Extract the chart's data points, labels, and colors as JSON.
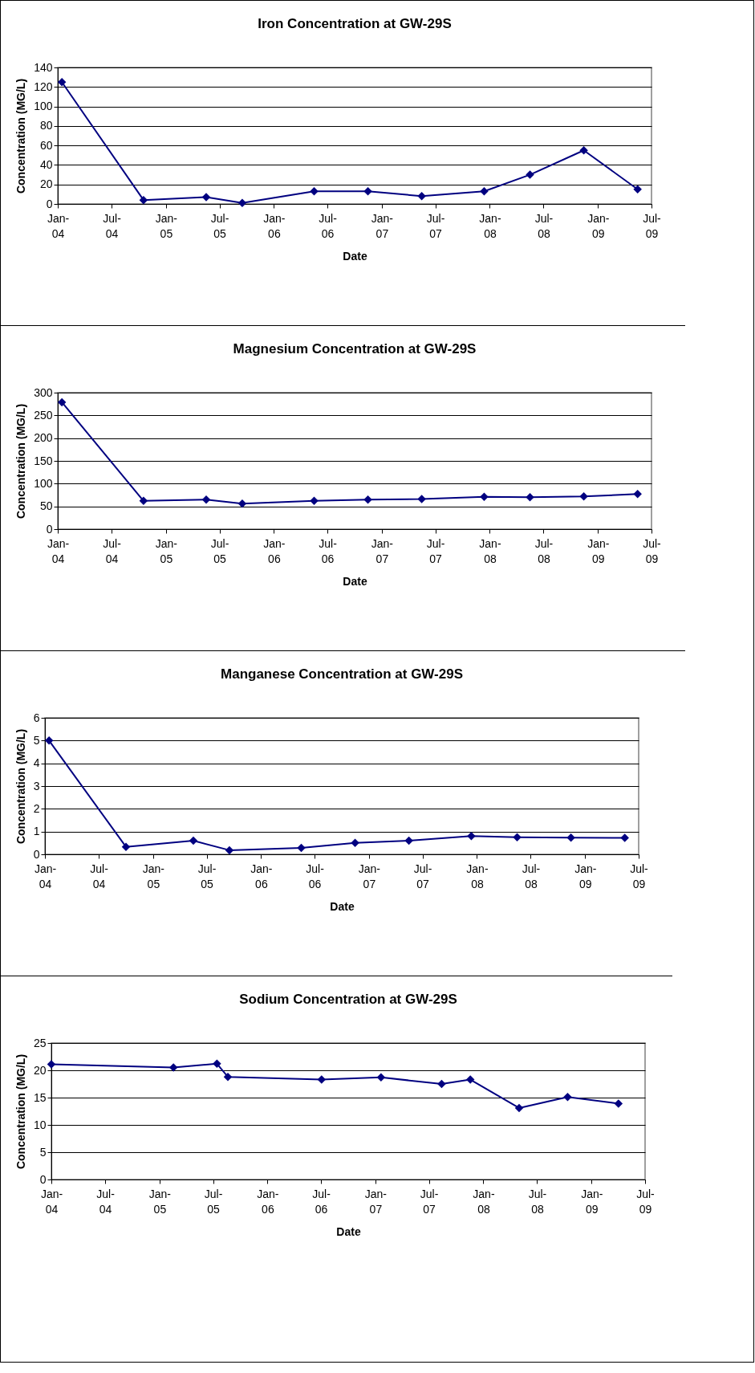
{
  "chart_data": [
    {
      "type": "line",
      "title": "Iron Concentration at GW-29S",
      "xlabel": "Date",
      "ylabel": "Concentration (MG/L)",
      "x": [
        "2004-01-15",
        "2004-10-17",
        "2005-05-17",
        "2005-09-16",
        "2006-05-17",
        "2006-11-15",
        "2007-05-16",
        "2007-12-13",
        "2008-05-16",
        "2008-11-14",
        "2009-05-15"
      ],
      "series": [
        {
          "color": "#000080",
          "values": [
            125,
            4,
            7,
            1,
            13,
            13,
            8,
            13,
            30,
            55,
            15
          ]
        }
      ],
      "xlim": [
        "2004-01-01",
        "2009-07-01"
      ],
      "xticks": [
        {
          "value": "2004-01-01",
          "label": "Jan-04"
        },
        {
          "value": "2004-07-01",
          "label": "Jul-04"
        },
        {
          "value": "2005-01-01",
          "label": "Jan-05"
        },
        {
          "value": "2005-07-01",
          "label": "Jul-05"
        },
        {
          "value": "2006-01-01",
          "label": "Jan-06"
        },
        {
          "value": "2006-07-01",
          "label": "Jul-06"
        },
        {
          "value": "2007-01-01",
          "label": "Jan-07"
        },
        {
          "value": "2007-07-01",
          "label": "Jul-07"
        },
        {
          "value": "2008-01-01",
          "label": "Jan-08"
        },
        {
          "value": "2008-07-01",
          "label": "Jul-08"
        },
        {
          "value": "2009-01-01",
          "label": "Jan-09"
        },
        {
          "value": "2009-07-01",
          "label": "Jul-09"
        }
      ],
      "ylim": [
        0,
        140
      ],
      "yticks": [
        0,
        20,
        40,
        60,
        80,
        100,
        120,
        140
      ],
      "grid": "y",
      "marker": "diamond",
      "line_style": "solid"
    },
    {
      "type": "line",
      "title": "Magnesium Concentration at GW-29S",
      "xlabel": "Date",
      "ylabel": "Concentration (MG/L)",
      "x": [
        "2004-01-15",
        "2004-10-17",
        "2005-05-17",
        "2005-09-16",
        "2006-05-17",
        "2006-11-15",
        "2007-05-16",
        "2007-12-13",
        "2008-05-16",
        "2008-11-14",
        "2009-05-15"
      ],
      "series": [
        {
          "color": "#000080",
          "values": [
            279,
            62,
            65,
            56,
            62,
            65,
            66,
            71,
            70,
            72,
            77
          ]
        }
      ],
      "xlim": [
        "2004-01-01",
        "2009-07-01"
      ],
      "xticks": [
        {
          "value": "2004-01-01",
          "label": "Jan-04"
        },
        {
          "value": "2004-07-01",
          "label": "Jul-04"
        },
        {
          "value": "2005-01-01",
          "label": "Jan-05"
        },
        {
          "value": "2005-07-01",
          "label": "Jul-05"
        },
        {
          "value": "2006-01-01",
          "label": "Jan-06"
        },
        {
          "value": "2006-07-01",
          "label": "Jul-06"
        },
        {
          "value": "2007-01-01",
          "label": "Jan-07"
        },
        {
          "value": "2007-07-01",
          "label": "Jul-07"
        },
        {
          "value": "2008-01-01",
          "label": "Jan-08"
        },
        {
          "value": "2008-07-01",
          "label": "Jul-08"
        },
        {
          "value": "2009-01-01",
          "label": "Jan-09"
        },
        {
          "value": "2009-07-01",
          "label": "Jul-09"
        }
      ],
      "ylim": [
        0,
        300
      ],
      "yticks": [
        0,
        50,
        100,
        150,
        200,
        250,
        300
      ],
      "grid": "y",
      "marker": "diamond",
      "line_style": "solid"
    },
    {
      "type": "line",
      "title": "Manganese Concentration at GW-29S",
      "xlabel": "Date",
      "ylabel": "Concentration (MG/L)",
      "x": [
        "2004-01-15",
        "2004-10-01",
        "2005-05-17",
        "2005-09-16",
        "2006-05-17",
        "2006-11-15",
        "2007-05-16",
        "2007-12-13",
        "2008-05-16",
        "2008-11-14",
        "2009-05-15"
      ],
      "series": [
        {
          "color": "#000080",
          "values": [
            5.0,
            0.33,
            0.6,
            0.18,
            0.28,
            0.5,
            0.6,
            0.8,
            0.75,
            0.73,
            0.72
          ]
        }
      ],
      "xlim": [
        "2004-01-01",
        "2009-07-01"
      ],
      "xticks": [
        {
          "value": "2004-01-01",
          "label": "Jan-04"
        },
        {
          "value": "2004-07-01",
          "label": "Jul-04"
        },
        {
          "value": "2005-01-01",
          "label": "Jan-05"
        },
        {
          "value": "2005-07-01",
          "label": "Jul-05"
        },
        {
          "value": "2006-01-01",
          "label": "Jan-06"
        },
        {
          "value": "2006-07-01",
          "label": "Jul-06"
        },
        {
          "value": "2007-01-01",
          "label": "Jan-07"
        },
        {
          "value": "2007-07-01",
          "label": "Jul-07"
        },
        {
          "value": "2008-01-01",
          "label": "Jan-08"
        },
        {
          "value": "2008-07-01",
          "label": "Jul-08"
        },
        {
          "value": "2009-01-01",
          "label": "Jan-09"
        },
        {
          "value": "2009-07-01",
          "label": "Jul-09"
        }
      ],
      "ylim": [
        0,
        6
      ],
      "yticks": [
        0,
        1,
        2,
        3,
        4,
        5,
        6
      ],
      "grid": "y",
      "marker": "diamond",
      "line_style": "solid"
    },
    {
      "type": "line",
      "title": "Sodium Concentration at GW-29S",
      "xlabel": "Date",
      "ylabel": "Concentration (MG/L)",
      "x": [
        "2004-01-01",
        "2005-02-17",
        "2005-07-14",
        "2005-08-20",
        "2006-07-03",
        "2007-01-20",
        "2007-08-13",
        "2007-11-18",
        "2008-05-01",
        "2008-10-12",
        "2009-04-02"
      ],
      "series": [
        {
          "color": "#000080",
          "values": [
            21.1,
            20.5,
            21.2,
            18.8,
            18.3,
            18.7,
            17.5,
            18.3,
            13.1,
            15.1,
            13.9
          ]
        }
      ],
      "xlim": [
        "2004-01-01",
        "2009-07-01"
      ],
      "xticks": [
        {
          "value": "2004-01-01",
          "label": "Jan-04"
        },
        {
          "value": "2004-07-01",
          "label": "Jul-04"
        },
        {
          "value": "2005-01-01",
          "label": "Jan-05"
        },
        {
          "value": "2005-07-01",
          "label": "Jul-05"
        },
        {
          "value": "2006-01-01",
          "label": "Jan-06"
        },
        {
          "value": "2006-07-01",
          "label": "Jul-06"
        },
        {
          "value": "2007-01-01",
          "label": "Jan-07"
        },
        {
          "value": "2007-07-01",
          "label": "Jul-07"
        },
        {
          "value": "2008-01-01",
          "label": "Jan-08"
        },
        {
          "value": "2008-07-01",
          "label": "Jul-08"
        },
        {
          "value": "2009-01-01",
          "label": "Jan-09"
        },
        {
          "value": "2009-07-01",
          "label": "Jul-09"
        }
      ],
      "ylim": [
        0,
        25
      ],
      "yticks": [
        0,
        5,
        10,
        15,
        20,
        25
      ],
      "grid": "y",
      "marker": "diamond",
      "line_style": "solid"
    }
  ]
}
